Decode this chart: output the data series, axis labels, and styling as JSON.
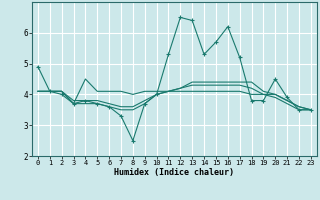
{
  "xlabel": "Humidex (Indice chaleur)",
  "xlim": [
    -0.5,
    23.5
  ],
  "ylim": [
    2,
    7
  ],
  "yticks": [
    2,
    3,
    4,
    5,
    6
  ],
  "xticks": [
    0,
    1,
    2,
    3,
    4,
    5,
    6,
    7,
    8,
    9,
    10,
    11,
    12,
    13,
    14,
    15,
    16,
    17,
    18,
    19,
    20,
    21,
    22,
    23
  ],
  "bg_color": "#cce8ea",
  "grid_color": "#ffffff",
  "line_color": "#1a7a6e",
  "lines": [
    [
      4.9,
      4.1,
      4.0,
      3.7,
      3.8,
      3.7,
      3.6,
      3.3,
      2.5,
      3.7,
      4.0,
      5.3,
      6.5,
      6.4,
      5.3,
      5.7,
      6.2,
      5.2,
      3.8,
      3.8,
      4.5,
      3.9,
      3.5,
      3.5
    ],
    [
      4.1,
      4.1,
      4.1,
      3.7,
      4.5,
      4.1,
      4.1,
      4.1,
      4.0,
      4.1,
      4.1,
      4.1,
      4.2,
      4.4,
      4.4,
      4.4,
      4.4,
      4.4,
      4.4,
      4.1,
      4.0,
      3.8,
      3.6,
      3.5
    ],
    [
      4.1,
      4.1,
      4.1,
      3.7,
      3.7,
      3.7,
      3.6,
      3.5,
      3.5,
      3.7,
      4.0,
      4.1,
      4.1,
      4.1,
      4.1,
      4.1,
      4.1,
      4.1,
      4.0,
      4.0,
      4.0,
      3.8,
      3.6,
      3.5
    ],
    [
      4.1,
      4.1,
      4.1,
      3.8,
      3.8,
      3.8,
      3.7,
      3.6,
      3.6,
      3.8,
      4.0,
      4.1,
      4.2,
      4.3,
      4.3,
      4.3,
      4.3,
      4.3,
      4.2,
      4.0,
      3.9,
      3.7,
      3.5,
      3.5
    ]
  ],
  "marker_indices": [
    0,
    3,
    6,
    9,
    12,
    13,
    14,
    15,
    16,
    17,
    19,
    20,
    22,
    23
  ]
}
